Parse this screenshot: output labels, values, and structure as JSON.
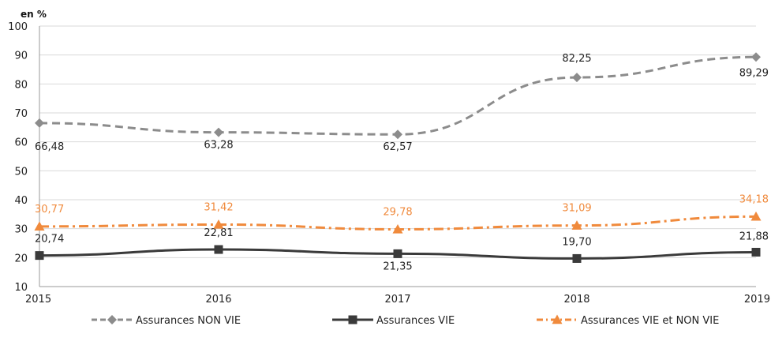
{
  "chart_data": {
    "type": "line",
    "title": "",
    "unit_label": "en %",
    "xlabel": "",
    "ylabel": "",
    "x": [
      "2015",
      "2016",
      "2017",
      "2018",
      "2019"
    ],
    "ylim": [
      10,
      100
    ],
    "yticks": [
      "10",
      "20",
      "30",
      "40",
      "50",
      "60",
      "70",
      "80",
      "90",
      "100"
    ],
    "grid": true,
    "legend_position": "bottom",
    "series": [
      {
        "name": "Assurances NON VIE",
        "values": [
          66.48,
          63.28,
          62.57,
          82.25,
          89.29
        ],
        "labels": [
          "66,48",
          "63,28",
          "62,57",
          "82,25",
          "89,29"
        ],
        "color": "#8c8c8c",
        "marker": "diamond",
        "line_style": "dashed"
      },
      {
        "name": "Assurances VIE",
        "values": [
          20.74,
          22.81,
          21.35,
          19.7,
          21.88
        ],
        "labels": [
          "20,74",
          "22,81",
          "21,35",
          "19,70",
          "21,88"
        ],
        "color": "#3a3a3a",
        "marker": "square",
        "line_style": "solid"
      },
      {
        "name": "Assurances VIE et NON VIE",
        "values": [
          30.77,
          31.42,
          29.78,
          31.09,
          34.18
        ],
        "labels": [
          "30,77",
          "31,42",
          "29,78",
          "31,09",
          "34,18"
        ],
        "color": "#f08a3c",
        "marker": "triangle",
        "line_style": "dash-dot"
      }
    ]
  }
}
